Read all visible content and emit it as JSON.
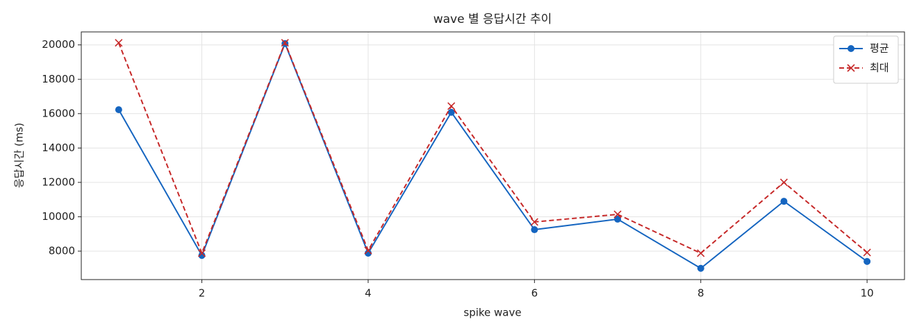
{
  "chart_data": {
    "type": "line",
    "title": "wave 별 응답시간 추이",
    "xlabel": "spike wave",
    "ylabel": "응답시간 (ms)",
    "x": [
      1,
      2,
      3,
      4,
      5,
      6,
      7,
      8,
      9,
      10
    ],
    "series": [
      {
        "name": "평균",
        "color": "#1565c0",
        "linestyle": "solid",
        "marker": "circle",
        "values": [
          16230,
          7750,
          20080,
          7880,
          16080,
          9250,
          9860,
          7000,
          10900,
          7400
        ]
      },
      {
        "name": "최대",
        "color": "#c62828",
        "linestyle": "dashed",
        "marker": "x",
        "values": [
          20120,
          7880,
          20120,
          8040,
          16440,
          9700,
          10140,
          7880,
          12000,
          7920
        ]
      }
    ],
    "xlim": [
      0.55,
      10.45
    ],
    "xticks": [
      2,
      4,
      6,
      8,
      10
    ],
    "ylim": [
      6345,
      20755
    ],
    "yticks": [
      8000,
      10000,
      12000,
      14000,
      16000,
      18000,
      20000
    ],
    "grid": true,
    "legend": "upper right"
  }
}
